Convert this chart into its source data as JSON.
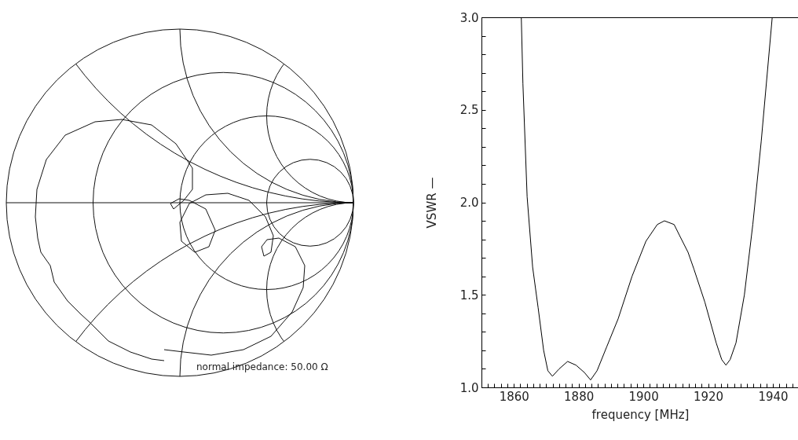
{
  "chart_data": {
    "type": "line",
    "xlabel": "frequency [MHz]",
    "ylabel": "VSWR —",
    "annotations": [
      "normal impedance: 50.00 Ω"
    ],
    "x": [
      1862.3,
      1862.8,
      1864.1,
      1865.8,
      1867.5,
      1869.2,
      1870.5,
      1871.9,
      1874.0,
      1876.6,
      1879.2,
      1881.8,
      1883.7,
      1885.7,
      1888.7,
      1892.2,
      1896.5,
      1900.8,
      1904.3,
      1906.5,
      1909.5,
      1911.2,
      1913.8,
      1915.6,
      1919.0,
      1922.5,
      1924.2,
      1925.5,
      1926.8,
      1928.6,
      1931.2,
      1933.8,
      1936.4,
      1939.8
    ],
    "series": [
      {
        "color": "#000000",
        "values": [
          3.0,
          2.64,
          2.03,
          1.65,
          1.43,
          1.2,
          1.09,
          1.06,
          1.1,
          1.14,
          1.12,
          1.08,
          1.04,
          1.09,
          1.22,
          1.37,
          1.6,
          1.79,
          1.88,
          1.9,
          1.88,
          1.82,
          1.73,
          1.64,
          1.46,
          1.24,
          1.15,
          1.12,
          1.15,
          1.24,
          1.5,
          1.88,
          2.33,
          3.0
        ]
      }
    ],
    "xlim": [
      1850,
      1948
    ],
    "ylim": [
      1,
      3
    ],
    "xticks": [
      {
        "value": 1852,
        "label": null
      },
      {
        "value": 1854,
        "label": null
      },
      {
        "value": 1856,
        "label": null
      },
      {
        "value": 1858,
        "label": null
      },
      1860,
      {
        "value": 1862,
        "label": null
      },
      {
        "value": 1864,
        "label": null
      },
      {
        "value": 1866,
        "label": null
      },
      {
        "value": 1868,
        "label": null
      },
      {
        "value": 1870,
        "label": null
      },
      {
        "value": 1872,
        "label": null
      },
      {
        "value": 1874,
        "label": null
      },
      {
        "value": 1876,
        "label": null
      },
      {
        "value": 1878,
        "label": null
      },
      1880,
      {
        "value": 1882,
        "label": null
      },
      {
        "value": 1884,
        "label": null
      },
      {
        "value": 1886,
        "label": null
      },
      {
        "value": 1888,
        "label": null
      },
      {
        "value": 1890,
        "label": null
      },
      {
        "value": 1892,
        "label": null
      },
      {
        "value": 1894,
        "label": null
      },
      {
        "value": 1896,
        "label": null
      },
      {
        "value": 1898,
        "label": null
      },
      1900,
      {
        "value": 1902,
        "label": null
      },
      {
        "value": 1904,
        "label": null
      },
      {
        "value": 1906,
        "label": null
      },
      {
        "value": 1908,
        "label": null
      },
      {
        "value": 1910,
        "label": null
      },
      {
        "value": 1912,
        "label": null
      },
      {
        "value": 1914,
        "label": null
      },
      {
        "value": 1916,
        "label": null
      },
      {
        "value": 1918,
        "label": null
      },
      1920,
      {
        "value": 1922,
        "label": null
      },
      {
        "value": 1924,
        "label": null
      },
      {
        "value": 1926,
        "label": null
      },
      {
        "value": 1928,
        "label": null
      },
      {
        "value": 1930,
        "label": null
      },
      {
        "value": 1932,
        "label": null
      },
      {
        "value": 1934,
        "label": null
      },
      {
        "value": 1936,
        "label": null
      },
      {
        "value": 1938,
        "label": null
      },
      1940,
      {
        "value": 1942,
        "label": null
      },
      {
        "value": 1944,
        "label": null
      },
      {
        "value": 1946,
        "label": null
      }
    ],
    "yticks": [
      {
        "value": 1,
        "label": "1.0"
      },
      {
        "value": 1.1,
        "label": null
      },
      {
        "value": 1.2,
        "label": null
      },
      {
        "value": 1.3,
        "label": null
      },
      {
        "value": 1.4,
        "label": null
      },
      1.5,
      {
        "value": 1.6,
        "label": null
      },
      {
        "value": 1.7,
        "label": null
      },
      {
        "value": 1.8,
        "label": null
      },
      {
        "value": 1.9,
        "label": null
      },
      {
        "value": 2,
        "label": "2.0"
      },
      {
        "value": 2.1,
        "label": null
      },
      {
        "value": 2.2,
        "label": null
      },
      {
        "value": 2.3,
        "label": null
      },
      {
        "value": 2.4,
        "label": null
      },
      2.5,
      {
        "value": 2.6,
        "label": null
      },
      {
        "value": 2.7,
        "label": null
      },
      {
        "value": 2.8,
        "label": null
      },
      {
        "value": 2.9,
        "label": null
      },
      {
        "value": 3,
        "label": "3.0"
      }
    ],
    "grid": false
  }
}
